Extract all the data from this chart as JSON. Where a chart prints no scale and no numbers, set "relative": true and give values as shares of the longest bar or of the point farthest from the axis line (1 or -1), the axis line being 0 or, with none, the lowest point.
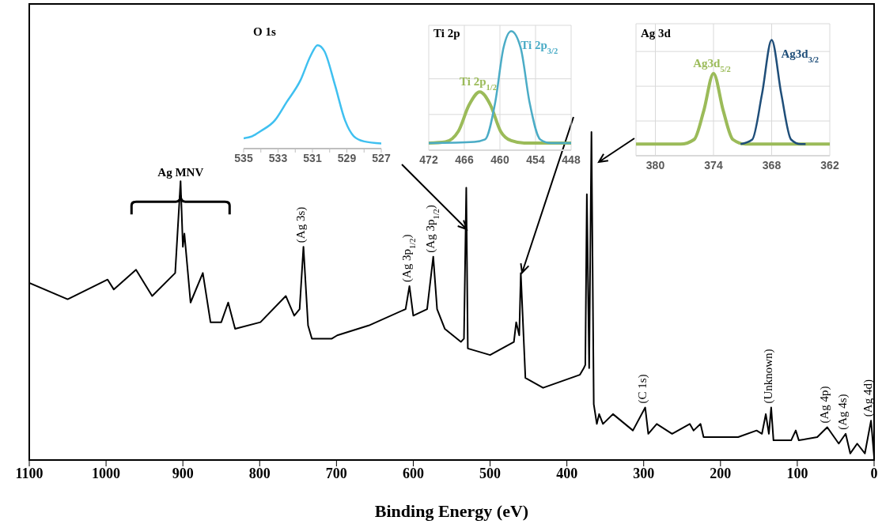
{
  "chart_data": [
    {
      "type": "line",
      "relative": true,
      "xlabel": "Binding Energy (eV)",
      "color": "#000000",
      "xlim": [
        1100,
        0
      ],
      "xticks": [
        1100,
        1000,
        900,
        800,
        700,
        600,
        500,
        400,
        300,
        200,
        100,
        0
      ],
      "x": [
        1100,
        1050,
        998,
        990,
        961,
        940,
        910,
        903,
        900,
        898,
        890,
        874,
        864,
        850,
        841,
        832,
        799,
        766,
        755,
        748,
        743,
        737,
        732,
        706,
        699,
        658,
        610,
        605,
        600,
        582,
        574,
        569,
        559,
        538,
        534,
        531,
        529,
        500,
        469,
        466,
        462,
        460,
        454,
        431,
        383,
        378,
        376,
        374,
        371,
        368,
        365,
        361,
        358,
        353,
        340,
        314,
        298,
        294,
        283,
        263,
        240,
        235,
        226,
        222,
        177,
        153,
        146,
        141,
        137,
        134,
        131,
        108,
        102,
        98,
        74,
        61,
        46,
        37,
        31,
        22,
        12,
        4,
        0
      ],
      "values": [
        0.54,
        0.49,
        0.55,
        0.52,
        0.58,
        0.5,
        0.57,
        0.85,
        0.65,
        0.69,
        0.48,
        0.57,
        0.42,
        0.42,
        0.48,
        0.4,
        0.42,
        0.5,
        0.44,
        0.46,
        0.65,
        0.41,
        0.37,
        0.37,
        0.38,
        0.41,
        0.46,
        0.53,
        0.44,
        0.46,
        0.62,
        0.46,
        0.4,
        0.36,
        0.37,
        0.83,
        0.34,
        0.32,
        0.36,
        0.42,
        0.38,
        0.57,
        0.25,
        0.22,
        0.26,
        0.28,
        0.29,
        0.81,
        0.28,
        1,
        0.17,
        0.11,
        0.14,
        0.11,
        0.14,
        0.09,
        0.16,
        0.08,
        0.11,
        0.08,
        0.11,
        0.09,
        0.11,
        0.07,
        0.07,
        0.09,
        0.08,
        0.14,
        0.08,
        0.16,
        0.06,
        0.06,
        0.09,
        0.06,
        0.07,
        0.1,
        0.05,
        0.08,
        0.02,
        0.05,
        0.02,
        0.12,
        0.01
      ],
      "annotations": [
        {
          "text": "Ag MNV",
          "x": 903,
          "y": 0.85
        },
        {
          "text": "(Ag 3s)",
          "x": 743,
          "y": 0.65
        },
        {
          "text": "(Ag 3p$_{1/2}$)",
          "x": 605,
          "y": 0.53
        },
        {
          "text": "(Ag 3p$_{1/2}$)",
          "x": 574,
          "y": 0.62
        },
        {
          "text": "(C 1s)",
          "x": 298,
          "y": 0.16
        },
        {
          "text": "(Unknown)",
          "x": 134,
          "y": 0.16
        },
        {
          "text": "(Ag 4p)",
          "x": 61,
          "y": 0.1
        },
        {
          "text": "(Ag 4s)",
          "x": 37,
          "y": 0.08
        },
        {
          "text": "(Ag 4d)",
          "x": 4,
          "y": 0.12
        }
      ]
    },
    {
      "type": "line",
      "relative": true,
      "title": "O 1s",
      "xlim": [
        535,
        527
      ],
      "xticks": [
        535,
        {
          "value": 534,
          "label": null
        },
        533,
        {
          "value": 532,
          "label": null
        },
        531,
        {
          "value": 530,
          "label": null
        },
        529,
        {
          "value": 528,
          "label": null
        },
        527
      ],
      "color": "#3fc0f0",
      "x": [
        535,
        534.5,
        534,
        533.2,
        532.5,
        531.7,
        531.1,
        530.7,
        530.3,
        529.7,
        529.1,
        528.6,
        528,
        527
      ],
      "values": [
        0.1,
        0.12,
        0.17,
        0.27,
        0.45,
        0.66,
        0.9,
        1,
        0.94,
        0.62,
        0.27,
        0.12,
        0.07,
        0.05
      ]
    },
    {
      "type": "line",
      "relative": true,
      "title": "Ti 2p",
      "grid": true,
      "xlim": [
        472,
        448
      ],
      "xticks": [
        472,
        466,
        460,
        454,
        448
      ],
      "series": [
        {
          "name": "Ti 2p$_{1/2}$",
          "color": "#9bbb59",
          "x": [
            472,
            469.2,
            467,
            465.2,
            463.4,
            461.6,
            459.9,
            458.1,
            455.9,
            448
          ],
          "values": [
            0.06,
            0.07,
            0.16,
            0.38,
            0.49,
            0.38,
            0.16,
            0.08,
            0.06,
            0.06
          ]
        },
        {
          "name": "Ti 2p$_{3/2}$",
          "color": "#4bacc6",
          "x": [
            472,
            464.3,
            462.5,
            460.8,
            459.4,
            458.1,
            456.5,
            455,
            453.2,
            451.4,
            448
          ],
          "values": [
            0.06,
            0.07,
            0.09,
            0.4,
            0.86,
            1,
            0.86,
            0.4,
            0.09,
            0.06,
            0.06
          ]
        }
      ]
    },
    {
      "type": "line",
      "relative": true,
      "title": "Ag 3d",
      "grid": true,
      "xlim": [
        382,
        362
      ],
      "xticks": [
        380,
        374,
        368,
        362
      ],
      "series": [
        {
          "name": "Ag3d$_{5/2}$",
          "color": "#9bbb59",
          "x": [
            382,
            377.4,
            376,
            375,
            374,
            373,
            372,
            370.7,
            362
          ],
          "values": [
            0.1,
            0.1,
            0.14,
            0.39,
            0.71,
            0.39,
            0.14,
            0.1,
            0.1
          ]
        },
        {
          "name": "Ag3d$_{3/2}$",
          "color": "#1f4e79",
          "x": [
            371.2,
            370,
            369,
            368,
            367,
            366,
            365,
            364.5
          ],
          "values": [
            0.1,
            0.14,
            0.53,
            1,
            0.53,
            0.14,
            0.1,
            0.1
          ]
        }
      ]
    }
  ]
}
